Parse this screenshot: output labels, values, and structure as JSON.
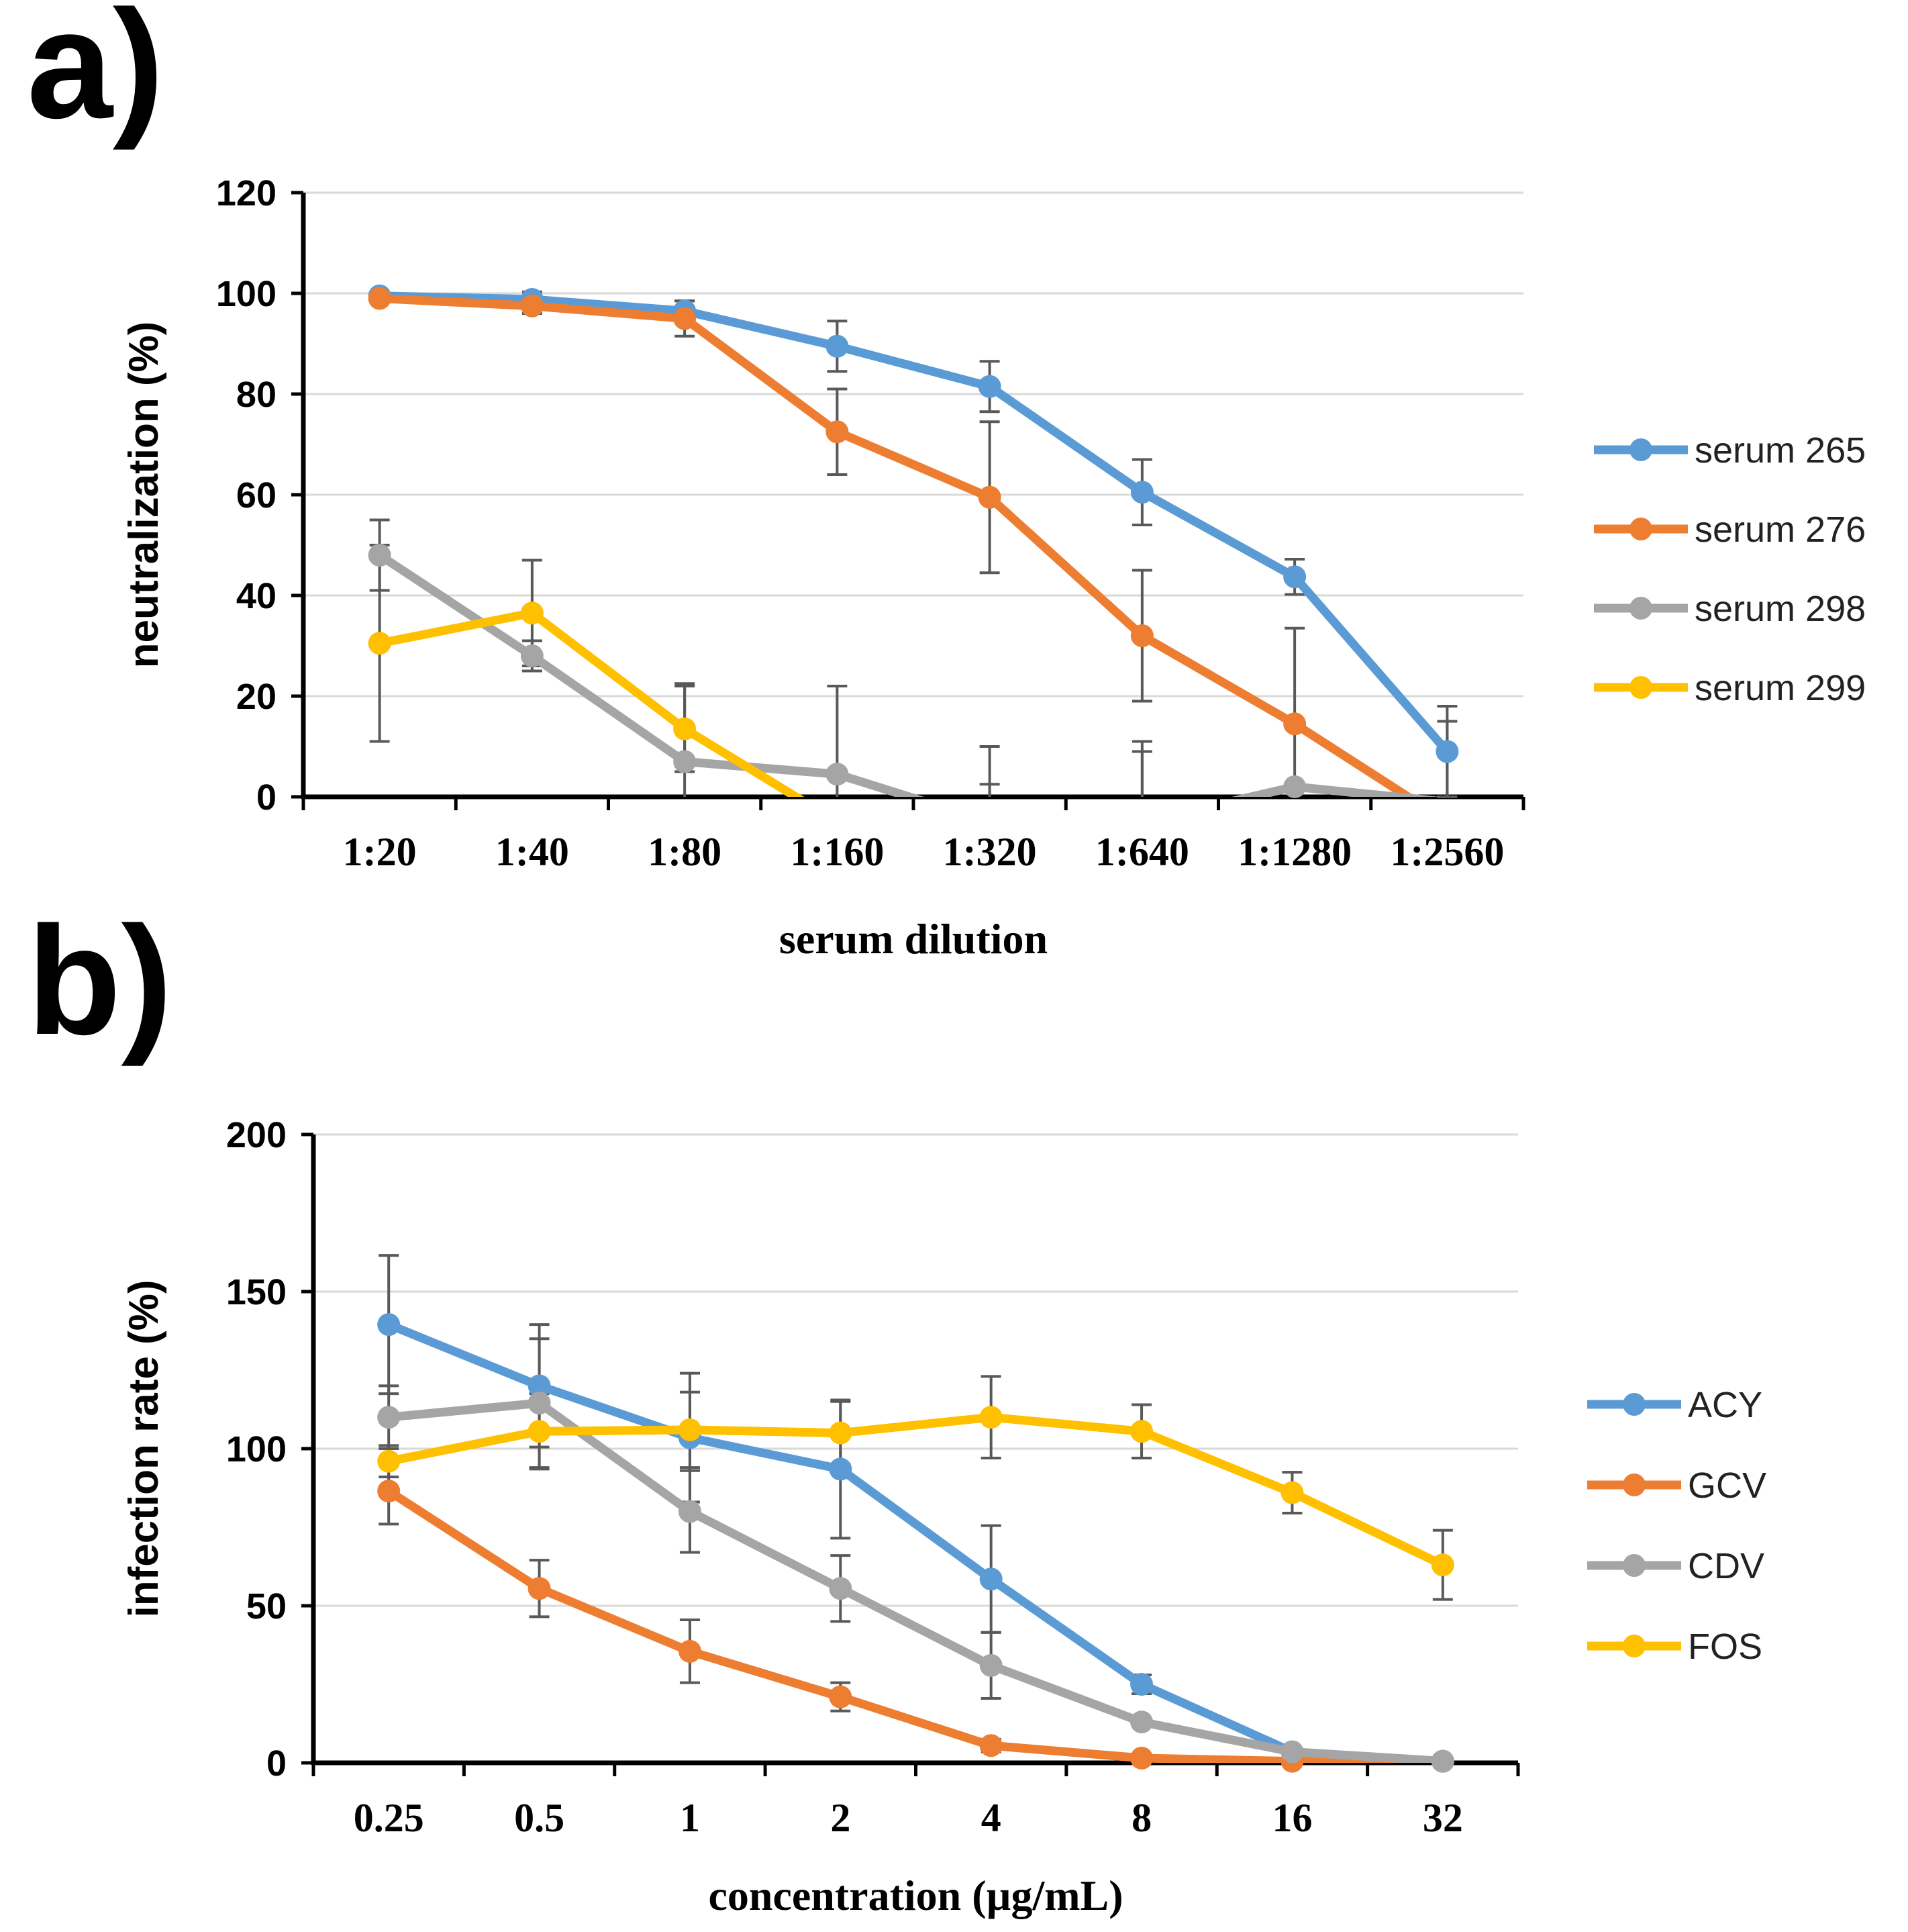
{
  "figure_labels": {
    "a": "a)",
    "b": "b)"
  },
  "chart_data": [
    {
      "type": "line",
      "panel": "a)",
      "title": "",
      "xlabel": "serum dilution",
      "ylabel": "neutralization (%)",
      "ylim": [
        0,
        120
      ],
      "yticks": [
        "0",
        "20",
        "40",
        "60",
        "80",
        "100",
        "120"
      ],
      "categories": [
        "1:20",
        "1:40",
        "1:80",
        "1:160",
        "1:320",
        "1:640",
        "1:1280",
        "1:2560"
      ],
      "grid": true,
      "legend_position": "right",
      "series": [
        {
          "name": "serum 265",
          "color": "#5b9bd5",
          "values": [
            99.5,
            98.8,
            96.5,
            89.5,
            81.5,
            60.5,
            43.7,
            9
          ],
          "errors": [
            0.5,
            1.5,
            2,
            5,
            5,
            6.5,
            3.5,
            9
          ]
        },
        {
          "name": "serum 276",
          "color": "#ed7d31",
          "values": [
            99,
            97.5,
            95,
            72.5,
            59.5,
            32,
            14.5,
            -5
          ],
          "errors": [
            0.5,
            1.5,
            3.5,
            8.5,
            15,
            13,
            19,
            0
          ]
        },
        {
          "name": "serum 298",
          "color": "#a5a5a5",
          "values": [
            48,
            28,
            7,
            4.5,
            -5,
            -5,
            2,
            -1
          ],
          "errors": [
            7,
            3,
            15.5,
            17.5,
            15,
            14,
            0,
            16
          ]
        },
        {
          "name": "serum 299",
          "color": "#ffc000",
          "values": [
            30.5,
            36.5,
            13.5,
            -5,
            -5,
            -5,
            -5,
            -5
          ],
          "errors": [
            19.5,
            10.5,
            8.5,
            0,
            7.5,
            16,
            6.5,
            0
          ]
        }
      ]
    },
    {
      "type": "line",
      "panel": "b)",
      "title": "",
      "xlabel": "concentration (µg/mL)",
      "ylabel": "infection rate (%)",
      "ylim": [
        0,
        200
      ],
      "yticks": [
        "0",
        "50",
        "100",
        "150",
        "200"
      ],
      "categories": [
        "0.25",
        "0.5",
        "1",
        "2",
        "4",
        "8",
        "16",
        "32"
      ],
      "grid": true,
      "legend_position": "right",
      "series": [
        {
          "name": "ACY",
          "color": "#5b9bd5",
          "values": [
            139.5,
            120,
            103.5,
            93.5,
            58.5,
            25,
            3.5,
            0.5
          ],
          "errors": [
            22,
            19.5,
            20.5,
            22,
            17,
            3,
            0,
            0
          ]
        },
        {
          "name": "GCV",
          "color": "#ed7d31",
          "values": [
            86.5,
            55.5,
            35.5,
            21,
            5.5,
            1.5,
            0.5,
            0.5
          ],
          "errors": [
            10.5,
            9,
            10,
            4.5,
            2,
            0,
            0,
            0
          ]
        },
        {
          "name": "CDV",
          "color": "#a5a5a5",
          "values": [
            110,
            114.5,
            80,
            55.5,
            31,
            13,
            3.5,
            0.5
          ],
          "errors": [
            10,
            20.5,
            13,
            10.5,
            10.5,
            0,
            0,
            0
          ]
        },
        {
          "name": "FOS",
          "color": "#ffc000",
          "values": [
            96,
            105.5,
            106,
            105,
            110,
            105.5,
            86,
            63
          ],
          "errors": [
            5,
            12,
            12,
            10,
            13,
            8.5,
            6.5,
            11
          ]
        }
      ]
    }
  ]
}
